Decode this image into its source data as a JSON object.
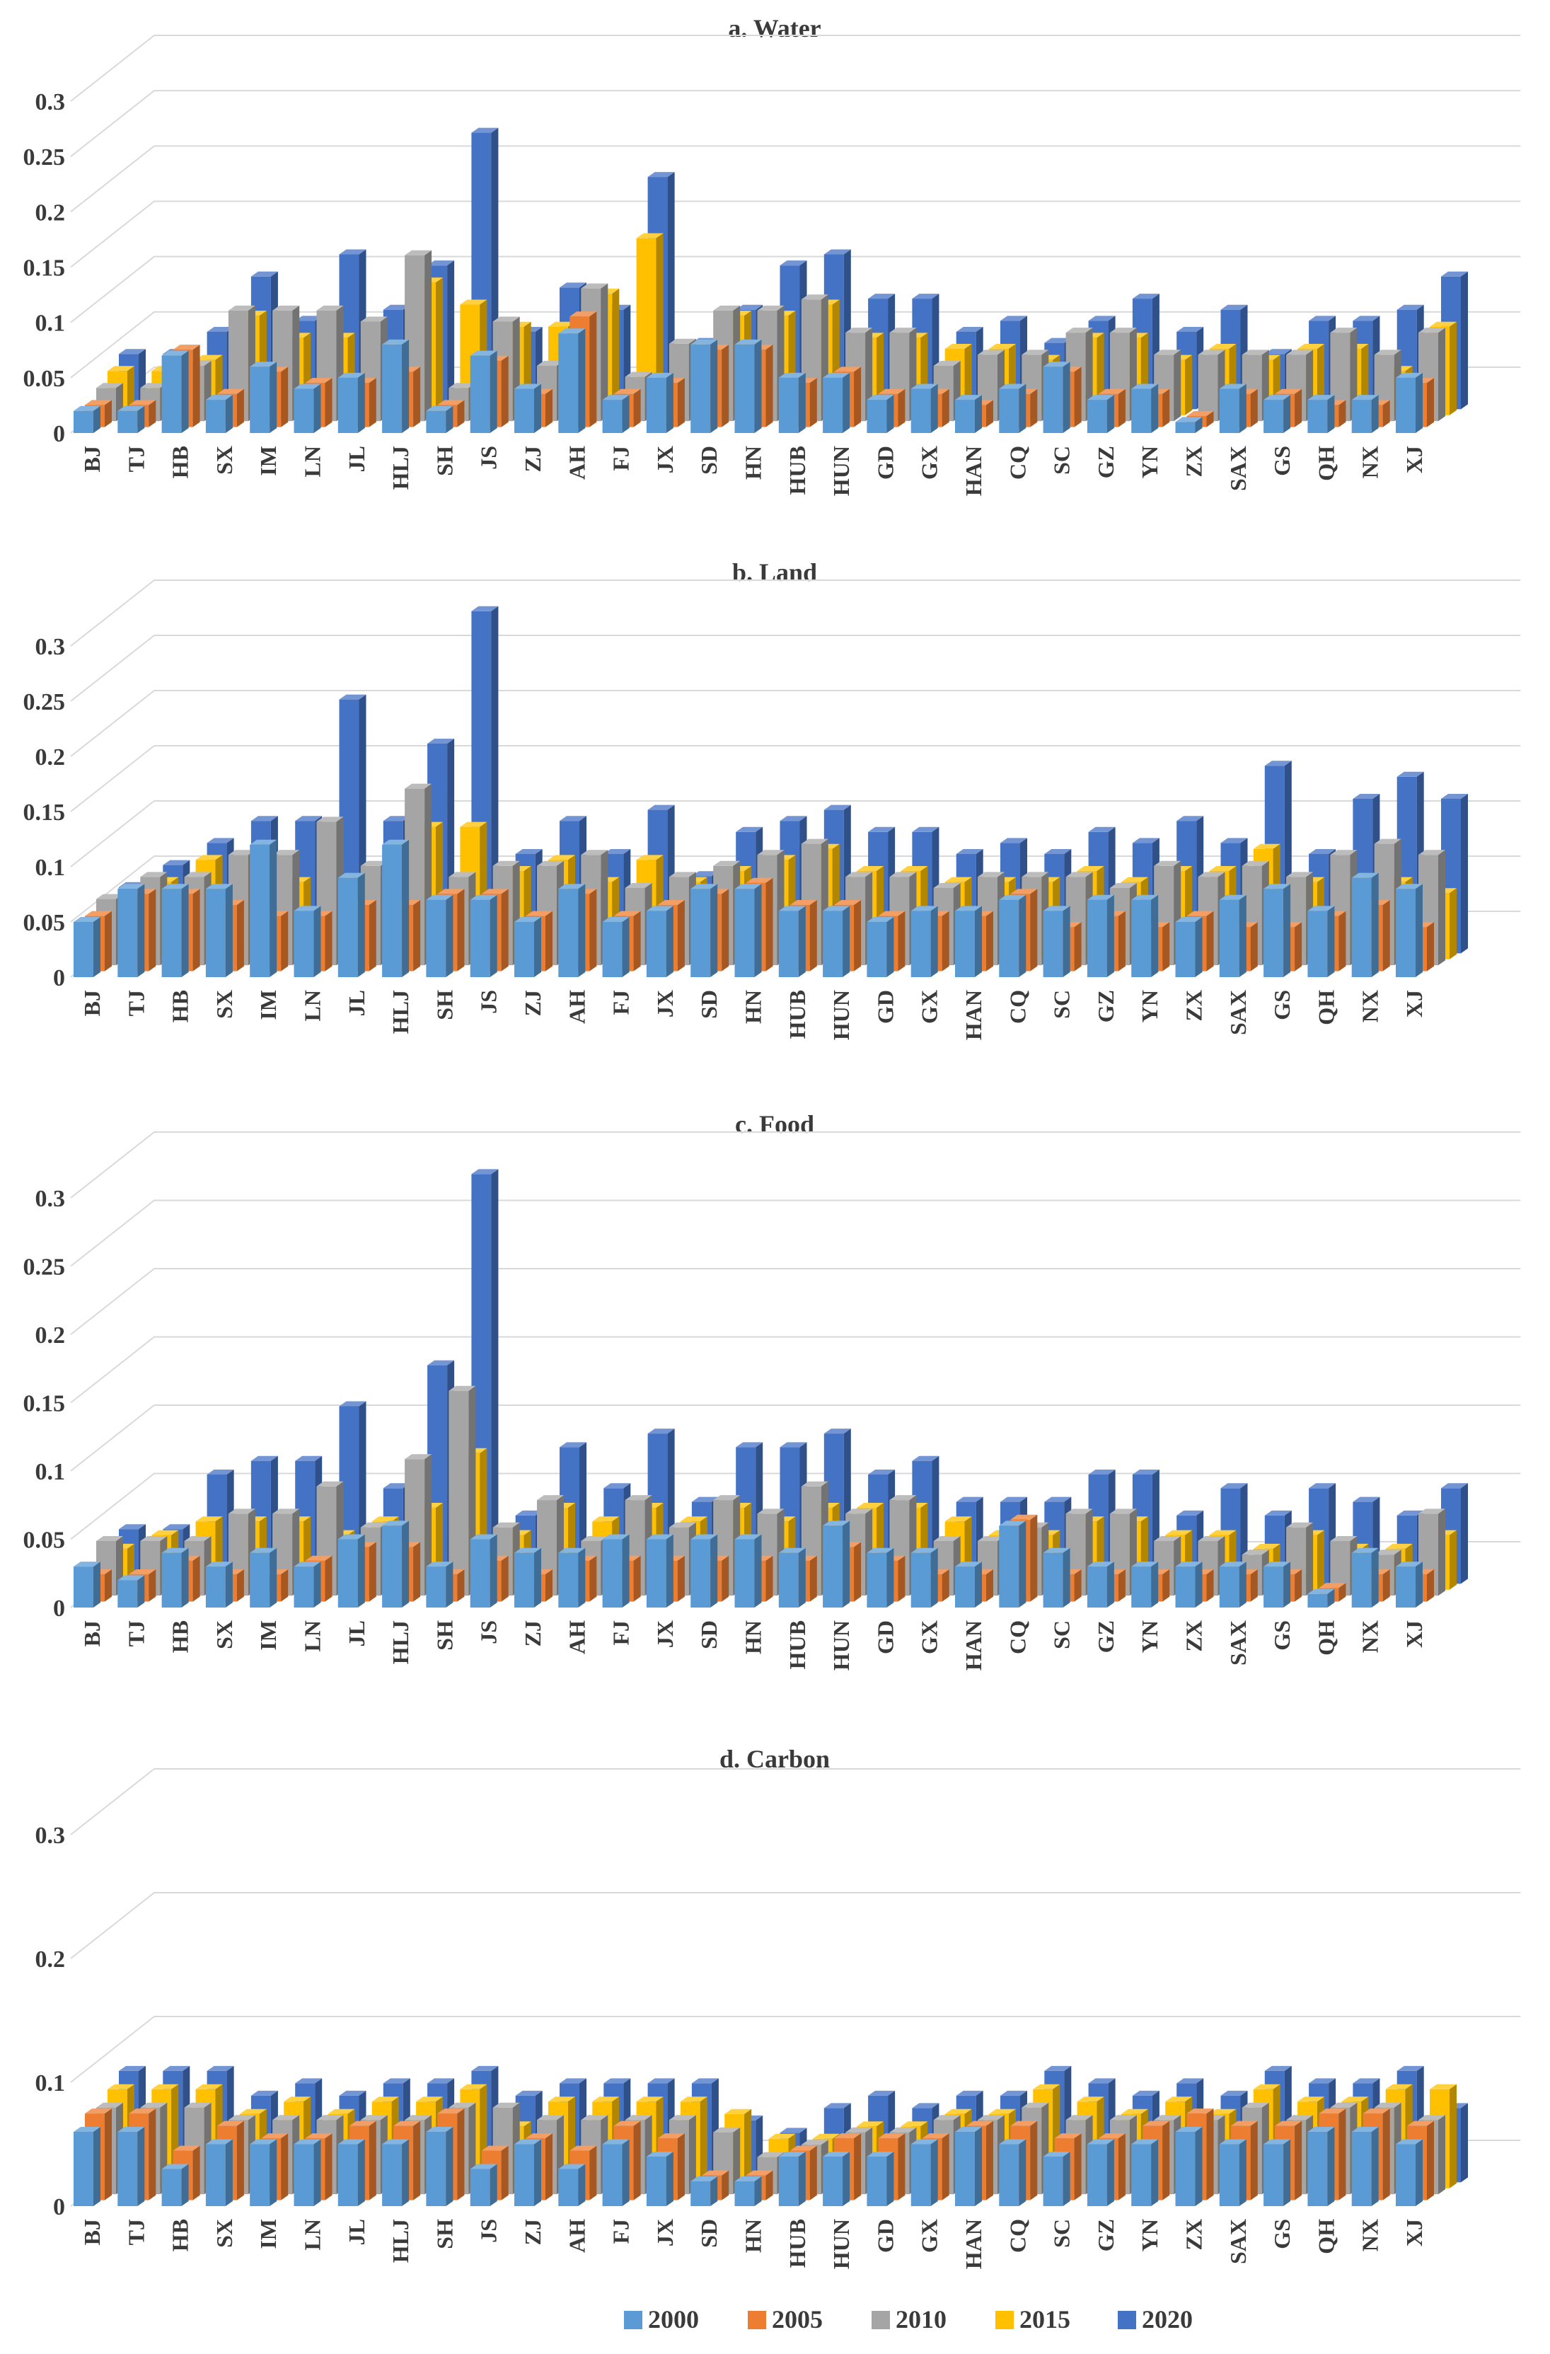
{
  "colors": {
    "2000": "#5B9BD5",
    "2005": "#ED7D31",
    "2010": "#A5A5A5",
    "2015": "#FFC000",
    "2020": "#4472C4"
  },
  "legend": [
    "2000",
    "2005",
    "2010",
    "2015",
    "2020"
  ],
  "chart_data": [
    {
      "type": "bar",
      "subtype": "3d-clustered",
      "title": "a. Water",
      "yticks": [
        "0",
        "0.05",
        "0.1",
        "0.15",
        "0.2",
        "0.25",
        "0.3"
      ],
      "ylim": [
        0,
        0.3
      ],
      "categories": [
        "BJ",
        "TJ",
        "HB",
        "SX",
        "IM",
        "LN",
        "JL",
        "HLJ",
        "SH",
        "JS",
        "ZJ",
        "AH",
        "FJ",
        "JX",
        "SD",
        "HN",
        "HUB",
        "HUN",
        "GD",
        "GX",
        "HAN",
        "CQ",
        "SC",
        "GZ",
        "YN",
        "ZX",
        "SAX",
        "GS",
        "QH",
        "NX",
        "XJ"
      ],
      "series": [
        {
          "name": "2000",
          "values": [
            0.02,
            0.02,
            0.07,
            0.03,
            0.06,
            0.04,
            0.05,
            0.08,
            0.02,
            0.07,
            0.04,
            0.09,
            0.03,
            0.05,
            0.08,
            0.08,
            0.05,
            0.05,
            0.03,
            0.04,
            0.03,
            0.04,
            0.06,
            0.03,
            0.04,
            0.01,
            0.04,
            0.03,
            0.03,
            0.03,
            0.05
          ]
        },
        {
          "name": "2005",
          "values": [
            0.02,
            0.02,
            0.07,
            0.03,
            0.05,
            0.04,
            0.04,
            0.05,
            0.02,
            0.06,
            0.03,
            0.1,
            0.03,
            0.04,
            0.07,
            0.07,
            0.04,
            0.05,
            0.03,
            0.03,
            0.02,
            0.03,
            0.05,
            0.03,
            0.03,
            0.01,
            0.03,
            0.03,
            0.02,
            0.02,
            0.04
          ]
        },
        {
          "name": "2010",
          "values": [
            0.03,
            0.03,
            0.05,
            0.1,
            0.1,
            0.1,
            0.09,
            0.15,
            0.03,
            0.09,
            0.05,
            0.12,
            0.04,
            0.07,
            0.1,
            0.1,
            0.11,
            0.08,
            0.08,
            0.05,
            0.06,
            0.06,
            0.08,
            0.08,
            0.06,
            0.06,
            0.06,
            0.06,
            0.08,
            0.06,
            0.08
          ]
        },
        {
          "name": "2015",
          "values": [
            0.04,
            0.04,
            0.05,
            0.09,
            0.07,
            0.07,
            0.06,
            0.12,
            0.1,
            0.08,
            0.08,
            0.11,
            0.16,
            0.06,
            0.09,
            0.09,
            0.1,
            0.07,
            0.07,
            0.06,
            0.06,
            0.05,
            0.07,
            0.07,
            0.05,
            0.06,
            0.05,
            0.06,
            0.06,
            0.04,
            0.08
          ]
        },
        {
          "name": "2020",
          "values": [
            0.05,
            0.05,
            0.07,
            0.12,
            0.08,
            0.14,
            0.09,
            0.13,
            0.25,
            0.07,
            0.11,
            0.09,
            0.21,
            0.06,
            0.09,
            0.13,
            0.14,
            0.1,
            0.1,
            0.07,
            0.08,
            0.06,
            0.08,
            0.1,
            0.07,
            0.09,
            0.05,
            0.08,
            0.08,
            0.09,
            0.12
          ]
        }
      ]
    },
    {
      "type": "bar",
      "subtype": "3d-clustered",
      "title": "b. Land",
      "yticks": [
        "0",
        "0.05",
        "0.1",
        "0.15",
        "0.2",
        "0.25",
        "0.3"
      ],
      "ylim": [
        0,
        0.3
      ],
      "categories": [
        "BJ",
        "TJ",
        "HB",
        "SX",
        "IM",
        "LN",
        "JL",
        "HLJ",
        "SH",
        "JS",
        "ZJ",
        "AH",
        "FJ",
        "JX",
        "SD",
        "HN",
        "HUB",
        "HUN",
        "GD",
        "GX",
        "HAN",
        "CQ",
        "SC",
        "GZ",
        "YN",
        "ZX",
        "SAX",
        "GS",
        "QH",
        "NX",
        "XJ"
      ],
      "series": [
        {
          "name": "2000",
          "values": [
            0.05,
            0.08,
            0.08,
            0.08,
            0.12,
            0.06,
            0.09,
            0.12,
            0.07,
            0.07,
            0.05,
            0.08,
            0.05,
            0.06,
            0.08,
            0.08,
            0.06,
            0.06,
            0.05,
            0.06,
            0.06,
            0.07,
            0.06,
            0.07,
            0.07,
            0.05,
            0.07,
            0.08,
            0.06,
            0.09,
            0.08
          ]
        },
        {
          "name": "2005",
          "values": [
            0.05,
            0.07,
            0.07,
            0.06,
            0.05,
            0.05,
            0.06,
            0.06,
            0.07,
            0.07,
            0.05,
            0.07,
            0.05,
            0.06,
            0.07,
            0.08,
            0.06,
            0.06,
            0.05,
            0.05,
            0.05,
            0.07,
            0.04,
            0.05,
            0.04,
            0.05,
            0.04,
            0.04,
            0.05,
            0.06,
            0.04
          ]
        },
        {
          "name": "2010",
          "values": [
            0.06,
            0.08,
            0.08,
            0.1,
            0.1,
            0.13,
            0.09,
            0.16,
            0.08,
            0.09,
            0.09,
            0.1,
            0.07,
            0.08,
            0.09,
            0.1,
            0.11,
            0.08,
            0.08,
            0.07,
            0.08,
            0.08,
            0.08,
            0.07,
            0.09,
            0.08,
            0.09,
            0.08,
            0.1,
            0.11,
            0.1
          ]
        },
        {
          "name": "2015",
          "values": [
            0.05,
            0.07,
            0.09,
            0.09,
            0.07,
            0.07,
            0.07,
            0.12,
            0.12,
            0.08,
            0.09,
            0.07,
            0.09,
            0.07,
            0.08,
            0.09,
            0.1,
            0.08,
            0.08,
            0.07,
            0.07,
            0.07,
            0.08,
            0.07,
            0.08,
            0.08,
            0.1,
            0.07,
            0.07,
            0.07,
            0.06
          ]
        },
        {
          "name": "2020",
          "values": [
            0.06,
            0.08,
            0.1,
            0.12,
            0.12,
            0.23,
            0.12,
            0.19,
            0.31,
            0.09,
            0.12,
            0.09,
            0.13,
            0.07,
            0.11,
            0.12,
            0.13,
            0.11,
            0.11,
            0.09,
            0.1,
            0.09,
            0.11,
            0.1,
            0.12,
            0.1,
            0.17,
            0.09,
            0.14,
            0.16,
            0.14
          ]
        }
      ]
    },
    {
      "type": "bar",
      "subtype": "3d-clustered",
      "title": "c. Food",
      "yticks": [
        "0",
        "0.05",
        "0.1",
        "0.15",
        "0.2",
        "0.25",
        "0.3"
      ],
      "ylim": [
        0,
        0.3
      ],
      "categories": [
        "BJ",
        "TJ",
        "HB",
        "SX",
        "IM",
        "LN",
        "JL",
        "HLJ",
        "SH",
        "JS",
        "ZJ",
        "AH",
        "FJ",
        "JX",
        "SD",
        "HN",
        "HUB",
        "HUN",
        "GD",
        "GX",
        "HAN",
        "CQ",
        "SC",
        "GZ",
        "YN",
        "ZX",
        "SAX",
        "GS",
        "QH",
        "NX",
        "XJ"
      ],
      "series": [
        {
          "name": "2000",
          "values": [
            0.03,
            0.02,
            0.04,
            0.03,
            0.04,
            0.03,
            0.05,
            0.06,
            0.03,
            0.05,
            0.04,
            0.04,
            0.05,
            0.05,
            0.05,
            0.05,
            0.04,
            0.06,
            0.04,
            0.04,
            0.03,
            0.06,
            0.04,
            0.03,
            0.03,
            0.03,
            0.03,
            0.03,
            0.01,
            0.04,
            0.03
          ]
        },
        {
          "name": "2005",
          "values": [
            0.02,
            0.02,
            0.03,
            0.02,
            0.02,
            0.03,
            0.04,
            0.04,
            0.02,
            0.03,
            0.02,
            0.03,
            0.03,
            0.03,
            0.03,
            0.03,
            0.03,
            0.04,
            0.03,
            0.02,
            0.02,
            0.06,
            0.02,
            0.02,
            0.02,
            0.02,
            0.02,
            0.02,
            0.01,
            0.02,
            0.02
          ]
        },
        {
          "name": "2010",
          "values": [
            0.04,
            0.04,
            0.04,
            0.06,
            0.06,
            0.08,
            0.05,
            0.1,
            0.15,
            0.05,
            0.07,
            0.04,
            0.07,
            0.05,
            0.07,
            0.06,
            0.08,
            0.06,
            0.07,
            0.04,
            0.04,
            0.05,
            0.06,
            0.06,
            0.04,
            0.04,
            0.03,
            0.05,
            0.04,
            0.03,
            0.06
          ]
        },
        {
          "name": "2015",
          "values": [
            0.03,
            0.04,
            0.05,
            0.05,
            0.05,
            0.04,
            0.05,
            0.06,
            0.1,
            0.04,
            0.06,
            0.05,
            0.06,
            0.05,
            0.06,
            0.05,
            0.06,
            0.06,
            0.06,
            0.05,
            0.04,
            0.04,
            0.05,
            0.05,
            0.04,
            0.04,
            0.03,
            0.04,
            0.03,
            0.03,
            0.04
          ]
        },
        {
          "name": "2020",
          "values": [
            0.04,
            0.04,
            0.08,
            0.09,
            0.09,
            0.13,
            0.07,
            0.16,
            0.3,
            0.05,
            0.1,
            0.07,
            0.11,
            0.06,
            0.1,
            0.1,
            0.11,
            0.08,
            0.09,
            0.06,
            0.06,
            0.06,
            0.08,
            0.08,
            0.05,
            0.07,
            0.05,
            0.07,
            0.06,
            0.05,
            0.07
          ]
        }
      ]
    },
    {
      "type": "bar",
      "subtype": "3d-clustered",
      "title": "d. Carbon",
      "yticks": [
        "0",
        "0.1",
        "0.2",
        "0.3"
      ],
      "ylim": [
        0,
        0.3
      ],
      "categories": [
        "BJ",
        "TJ",
        "HB",
        "SX",
        "IM",
        "LN",
        "JL",
        "HLJ",
        "SH",
        "JS",
        "ZJ",
        "AH",
        "FJ",
        "JX",
        "SD",
        "HN",
        "HUB",
        "HUN",
        "GD",
        "GX",
        "HAN",
        "CQ",
        "SC",
        "GZ",
        "YN",
        "ZX",
        "SAX",
        "GS",
        "QH",
        "NX",
        "XJ"
      ],
      "series": [
        {
          "name": "2000",
          "values": [
            0.06,
            0.06,
            0.03,
            0.05,
            0.05,
            0.05,
            0.05,
            0.05,
            0.06,
            0.03,
            0.05,
            0.03,
            0.05,
            0.04,
            0.02,
            0.02,
            0.04,
            0.04,
            0.04,
            0.05,
            0.06,
            0.05,
            0.04,
            0.05,
            0.05,
            0.06,
            0.05,
            0.05,
            0.06,
            0.06,
            0.05
          ]
        },
        {
          "name": "2005",
          "values": [
            0.07,
            0.07,
            0.04,
            0.06,
            0.05,
            0.05,
            0.06,
            0.06,
            0.07,
            0.04,
            0.05,
            0.04,
            0.06,
            0.05,
            0.02,
            0.02,
            0.04,
            0.05,
            0.05,
            0.05,
            0.06,
            0.06,
            0.05,
            0.05,
            0.06,
            0.07,
            0.06,
            0.06,
            0.07,
            0.07,
            0.06
          ]
        },
        {
          "name": "2010",
          "values": [
            0.07,
            0.07,
            0.07,
            0.06,
            0.06,
            0.06,
            0.06,
            0.06,
            0.07,
            0.07,
            0.06,
            0.06,
            0.06,
            0.06,
            0.05,
            0.03,
            0.04,
            0.05,
            0.05,
            0.06,
            0.06,
            0.07,
            0.06,
            0.06,
            0.06,
            0.06,
            0.07,
            0.06,
            0.07,
            0.07,
            0.06
          ]
        },
        {
          "name": "2015",
          "values": [
            0.08,
            0.08,
            0.08,
            0.06,
            0.07,
            0.06,
            0.07,
            0.07,
            0.08,
            0.05,
            0.07,
            0.07,
            0.07,
            0.07,
            0.06,
            0.04,
            0.04,
            0.05,
            0.05,
            0.06,
            0.06,
            0.08,
            0.07,
            0.06,
            0.07,
            0.06,
            0.08,
            0.07,
            0.07,
            0.08,
            0.08
          ]
        },
        {
          "name": "2020",
          "values": [
            0.09,
            0.09,
            0.09,
            0.07,
            0.08,
            0.07,
            0.08,
            0.08,
            0.09,
            0.07,
            0.08,
            0.08,
            0.08,
            0.08,
            0.05,
            0.04,
            0.06,
            0.07,
            0.06,
            0.07,
            0.07,
            0.09,
            0.08,
            0.07,
            0.08,
            0.07,
            0.09,
            0.08,
            0.08,
            0.09,
            0.06
          ]
        }
      ]
    }
  ]
}
